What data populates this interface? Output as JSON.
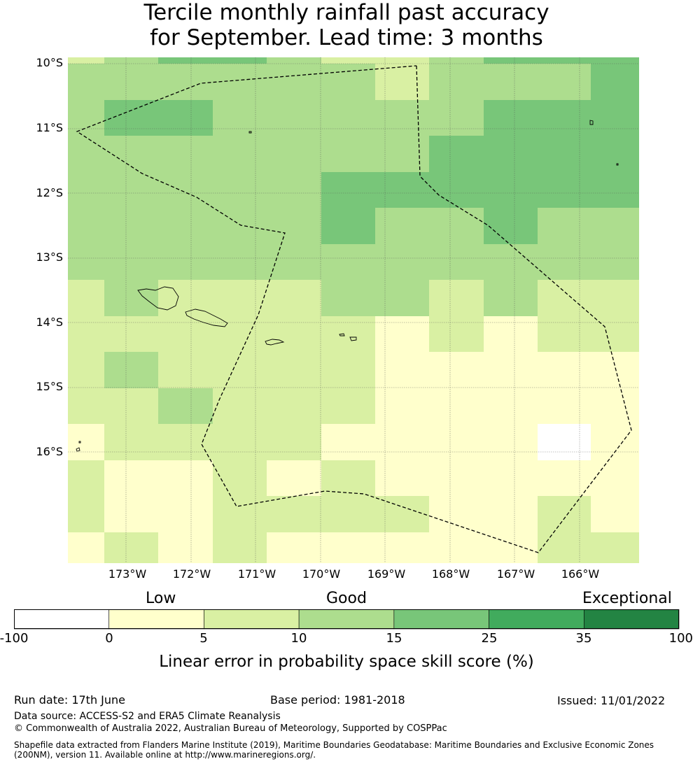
{
  "title": {
    "line1": "Tercile monthly rainfall past accuracy",
    "line2": "for September. Lead time: 3 months"
  },
  "map": {
    "lat_labels": [
      "10°S",
      "11°S",
      "12°S",
      "13°S",
      "14°S",
      "15°S",
      "16°S"
    ],
    "lon_labels": [
      "173°W",
      "172°W",
      "171°W",
      "170°W",
      "169°W",
      "168°W",
      "167°W",
      "166°W"
    ],
    "palette": [
      "#ffffff",
      "#ffffcc",
      "#d9f0a3",
      "#addd8e",
      "#78c679",
      "#41ab5d",
      "#238443"
    ],
    "grid_levels": [
      [
        2,
        2,
        3,
        3,
        4,
        4,
        4,
        3,
        3,
        3,
        2,
        2,
        2,
        2,
        3,
        3,
        4,
        4,
        4,
        4
      ],
      [
        3,
        3,
        3,
        3,
        3,
        3,
        3,
        3,
        3,
        3,
        3,
        3,
        2,
        3,
        3,
        3,
        3,
        3,
        3,
        4
      ],
      [
        3,
        3,
        4,
        4,
        4,
        3,
        3,
        3,
        3,
        3,
        3,
        3,
        3,
        3,
        3,
        3,
        4,
        4,
        4,
        4
      ],
      [
        3,
        3,
        3,
        3,
        3,
        3,
        3,
        3,
        3,
        3,
        3,
        3,
        3,
        4,
        4,
        4,
        4,
        4,
        4,
        4
      ],
      [
        3,
        3,
        3,
        3,
        3,
        3,
        3,
        3,
        3,
        4,
        4,
        4,
        4,
        4,
        4,
        4,
        4,
        4,
        4,
        4
      ],
      [
        3,
        3,
        3,
        3,
        3,
        3,
        3,
        3,
        3,
        4,
        4,
        3,
        3,
        3,
        3,
        3,
        4,
        4,
        3,
        3
      ],
      [
        3,
        3,
        3,
        3,
        3,
        3,
        3,
        3,
        3,
        3,
        3,
        3,
        3,
        3,
        3,
        3,
        3,
        3,
        3,
        3
      ],
      [
        2,
        2,
        3,
        3,
        2,
        2,
        2,
        2,
        2,
        2,
        3,
        3,
        3,
        2,
        2,
        3,
        3,
        3,
        2,
        2
      ],
      [
        2,
        2,
        2,
        2,
        2,
        2,
        2,
        2,
        2,
        2,
        2,
        1,
        1,
        2,
        2,
        1,
        1,
        2,
        2,
        2
      ],
      [
        2,
        2,
        3,
        3,
        2,
        2,
        2,
        2,
        2,
        2,
        2,
        1,
        1,
        1,
        1,
        1,
        1,
        1,
        1,
        1
      ],
      [
        2,
        2,
        2,
        2,
        3,
        3,
        2,
        2,
        2,
        2,
        2,
        2,
        1,
        1,
        1,
        1,
        1,
        1,
        1,
        1
      ],
      [
        1,
        1,
        2,
        2,
        2,
        2,
        2,
        2,
        2,
        2,
        1,
        1,
        1,
        1,
        1,
        1,
        1,
        0,
        0,
        1
      ],
      [
        2,
        2,
        1,
        1,
        1,
        1,
        2,
        2,
        1,
        1,
        2,
        2,
        1,
        1,
        1,
        1,
        1,
        1,
        1,
        1
      ],
      [
        2,
        2,
        1,
        1,
        1,
        1,
        2,
        2,
        2,
        2,
        2,
        2,
        2,
        2,
        1,
        1,
        1,
        2,
        2,
        1
      ],
      [
        1,
        1,
        2,
        2,
        1,
        1,
        2,
        2,
        1,
        1,
        1,
        1,
        1,
        1,
        1,
        1,
        1,
        2,
        2,
        2
      ]
    ]
  },
  "colorbar": {
    "categories": [
      "Low",
      "Good",
      "Exceptional"
    ],
    "ticks": [
      "-100",
      "0",
      "5",
      "10",
      "15",
      "25",
      "35",
      "100"
    ],
    "title": "Linear error in probability space skill score (%)"
  },
  "footer": {
    "run_date": "Run date: 17th June",
    "base_period": "Base period: 1981-2018",
    "issued": "Issued: 11/01/2022",
    "data_source": "Data source: ACCESS-S2 and ERA5 Climate Reanalysis",
    "copyright": "© Commonwealth of Australia 2022, Australian Bureau of Meteorology, Supported by COSPPac",
    "shapefile": "Shapefile data extracted from Flanders Marine Institute (2019), Maritime Boundaries Geodatabase: Maritime Boundaries and Exclusive Economic Zones (200NM), version 11. Available online at http://www.marineregions.org/."
  }
}
